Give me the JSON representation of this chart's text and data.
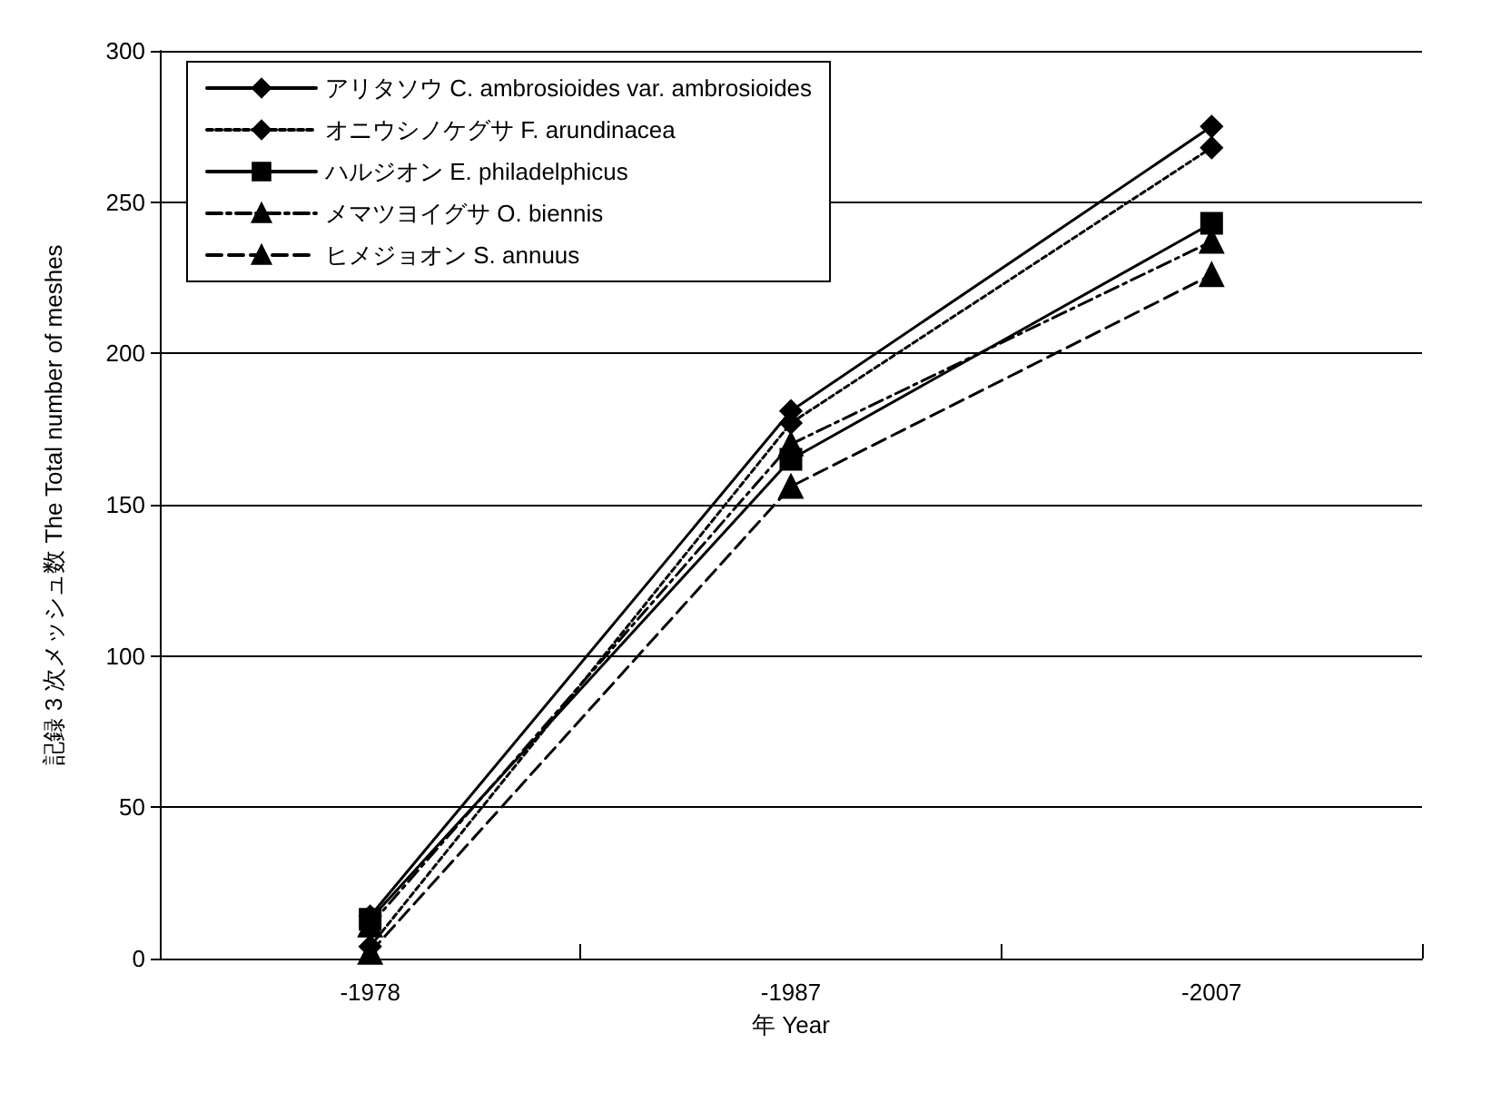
{
  "chart_data": {
    "type": "line",
    "xlabel": "年 Year",
    "ylabel": "記録 3 次メッシュ数 The Total number of meshes",
    "categories": [
      "-1978",
      "-1987",
      "-2007"
    ],
    "series": [
      {
        "name": "アリタソウ C. ambrosioides var. ambrosioides",
        "color": "#000000",
        "values": [
          14,
          181,
          275
        ],
        "marker": "diamond",
        "line_style": "solid"
      },
      {
        "name": "オニウシノケグサ F. arundinacea",
        "color": "#000000",
        "values": [
          4,
          177,
          268
        ],
        "marker": "diamond",
        "line_style": "dotted"
      },
      {
        "name": "ハルジオン E. philadelphicus",
        "color": "#000000",
        "values": [
          13,
          165,
          243
        ],
        "marker": "square",
        "line_style": "solid"
      },
      {
        "name": "メマツヨイグサ O. biennis",
        "color": "#000000",
        "values": [
          11,
          170,
          237
        ],
        "marker": "triangle",
        "line_style": "dashdot"
      },
      {
        "name": "ヒメジョオン S. annuus",
        "color": "#000000",
        "values": [
          2,
          156,
          226
        ],
        "marker": "triangle",
        "line_style": "dashed"
      }
    ],
    "ylim": [
      0,
      300
    ],
    "yticks": [
      0,
      50,
      100,
      150,
      200,
      250,
      300
    ],
    "grid": "y",
    "legend": "top left"
  }
}
